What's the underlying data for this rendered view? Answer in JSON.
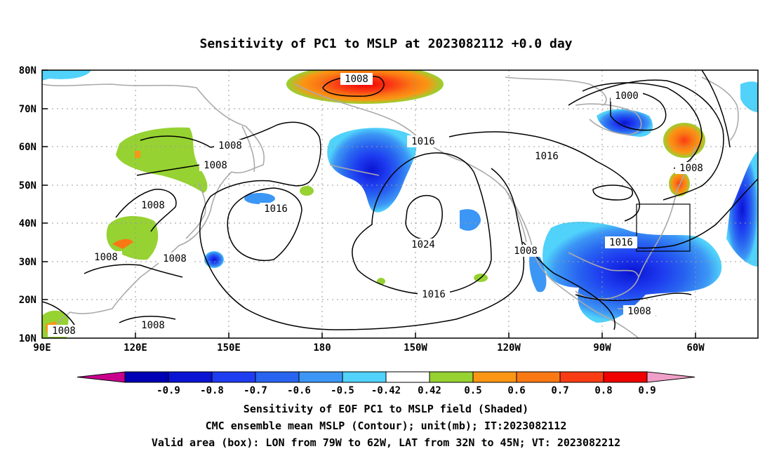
{
  "title": "Sensitivity of PC1 to MSLP at 2023082112 +0.0 day",
  "lat_ticks": [
    "80N",
    "70N",
    "60N",
    "50N",
    "40N",
    "30N",
    "20N",
    "10N"
  ],
  "lon_ticks": [
    "90E",
    "120E",
    "150E",
    "180",
    "150W",
    "120W",
    "90W",
    "60W"
  ],
  "contour_labels": [
    {
      "value": "1008",
      "region": "arctic-high"
    },
    {
      "value": "1016",
      "region": "gulf-of-alaska"
    },
    {
      "value": "1008",
      "region": "siberia-upper"
    },
    {
      "value": "1008",
      "region": "siberia-lower"
    },
    {
      "value": "1008",
      "region": "manchuria"
    },
    {
      "value": "1016",
      "region": "northwest-pacific"
    },
    {
      "value": "1008",
      "region": "south-china-left"
    },
    {
      "value": "1008",
      "region": "south-china-right"
    },
    {
      "value": "1008",
      "region": "philippines"
    },
    {
      "value": "1008",
      "region": "bay-of-bengal"
    },
    {
      "value": "1024",
      "region": "pacific-high"
    },
    {
      "value": "1016",
      "region": "subtropical-pacific"
    },
    {
      "value": "1000",
      "region": "hudson-bay"
    },
    {
      "value": "1016",
      "region": "canada"
    },
    {
      "value": "1008",
      "region": "labrador"
    },
    {
      "value": "1008",
      "region": "mexico"
    },
    {
      "value": "1016",
      "region": "east-coast"
    },
    {
      "value": "1008",
      "region": "caribbean"
    }
  ],
  "colorbar": {
    "labels": [
      "-0.9",
      "-0.8",
      "-0.7",
      "-0.6",
      "-0.5",
      "-0.42",
      "0.42",
      "0.5",
      "0.6",
      "0.7",
      "0.8",
      "0.9"
    ],
    "colors": [
      "#c8008c",
      "#0000b4",
      "#0a14d2",
      "#1e3cf0",
      "#2864f0",
      "#3c96f5",
      "#50d2fa",
      "#ffffff",
      "#96d232",
      "#fa9614",
      "#fa7814",
      "#fa3c14",
      "#f00000",
      "#f0a0c8"
    ]
  },
  "captions": [
    "Sensitivity of EOF PC1 to MSLP field (Shaded)",
    "CMC ensemble mean MSLP (Contour); unit(mb); IT:2023082112",
    "Valid area (box): LON from 79W to 62W, LAT from 32N to 45N; VT: 2023082212"
  ],
  "valid_box": {
    "lon_min": -79,
    "lon_max": -62,
    "lat_min": 32,
    "lat_max": 45
  },
  "map_extent": {
    "lon_min": 90,
    "lon_max": 320,
    "lat_min": 10,
    "lat_max": 80
  }
}
